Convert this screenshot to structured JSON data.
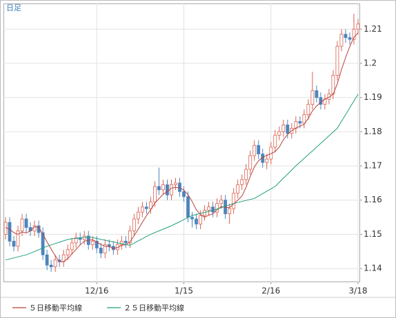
{
  "chart_data": {
    "type": "candlestick",
    "period_label": "日足",
    "categories": [
      null,
      null,
      null,
      null,
      null,
      null,
      null,
      null,
      null,
      null,
      null,
      null,
      null,
      null,
      null,
      null,
      null,
      null,
      null,
      null,
      null,
      null,
      "12/16",
      null,
      null,
      null,
      null,
      null,
      null,
      null,
      null,
      null,
      null,
      null,
      null,
      null,
      null,
      null,
      null,
      null,
      null,
      null,
      null,
      "1/15",
      null,
      null,
      null,
      null,
      null,
      null,
      null,
      null,
      null,
      null,
      null,
      null,
      null,
      null,
      null,
      null,
      null,
      null,
      null,
      null,
      "2/16",
      null,
      null,
      null,
      null,
      null,
      null,
      null,
      null,
      null,
      null,
      null,
      null,
      null,
      null,
      null,
      null,
      null,
      null,
      null,
      null,
      "3/18"
    ],
    "open": [
      1.15,
      1.1535,
      1.148,
      1.1465,
      1.151,
      1.1545,
      1.152,
      1.151,
      1.1525,
      1.1505,
      1.144,
      1.141,
      1.1405,
      1.1425,
      1.142,
      1.144,
      1.1455,
      1.1475,
      1.149,
      1.1485,
      1.1495,
      1.147,
      1.148,
      1.146,
      1.1445,
      1.147,
      1.1465,
      1.1455,
      1.147,
      1.148,
      1.1475,
      1.151,
      1.1545,
      1.1565,
      1.158,
      1.1575,
      1.1595,
      1.164,
      1.163,
      1.1645,
      1.1615,
      1.1645,
      1.165,
      1.1625,
      1.161,
      1.155,
      1.1545,
      1.153,
      1.1555,
      1.157,
      1.158,
      1.1565,
      1.159,
      1.16,
      1.156,
      1.1575,
      1.162,
      1.1645,
      1.166,
      1.169,
      1.173,
      1.176,
      1.1735,
      1.171,
      1.172,
      1.1755,
      1.179,
      1.18,
      1.182,
      1.1795,
      1.181,
      1.183,
      1.1825,
      1.185,
      1.188,
      1.192,
      1.19,
      1.188,
      1.1895,
      1.191,
      1.1965,
      1.205,
      1.2085,
      1.2075,
      1.207,
      1.21
    ],
    "high": [
      1.155,
      1.155,
      1.1495,
      1.1525,
      1.156,
      1.156,
      1.1535,
      1.154,
      1.154,
      1.152,
      1.1455,
      1.1425,
      1.144,
      1.144,
      1.1455,
      1.147,
      1.149,
      1.1505,
      1.1505,
      1.151,
      1.151,
      1.1495,
      1.1495,
      1.1475,
      1.1485,
      1.1485,
      1.148,
      1.1485,
      1.1495,
      1.1495,
      1.1525,
      1.156,
      1.158,
      1.1595,
      1.1595,
      1.161,
      1.1655,
      1.1695,
      1.166,
      1.166,
      1.166,
      1.1665,
      1.1665,
      1.164,
      1.1625,
      1.1565,
      1.156,
      1.157,
      1.1585,
      1.1595,
      1.1595,
      1.1605,
      1.1615,
      1.1615,
      1.159,
      1.1635,
      1.166,
      1.1675,
      1.1705,
      1.1745,
      1.1775,
      1.1775,
      1.175,
      1.1735,
      1.177,
      1.1805,
      1.1815,
      1.1835,
      1.1835,
      1.1825,
      1.1845,
      1.1845,
      1.1865,
      1.1895,
      1.1975,
      1.1935,
      1.1915,
      1.191,
      1.1925,
      1.198,
      1.2065,
      1.21,
      1.21,
      1.209,
      1.2145,
      1.213
    ],
    "low": [
      1.1485,
      1.1465,
      1.145,
      1.145,
      1.1495,
      1.1505,
      1.1495,
      1.1495,
      1.149,
      1.1425,
      1.1395,
      1.139,
      1.139,
      1.1405,
      1.1405,
      1.1425,
      1.144,
      1.146,
      1.147,
      1.147,
      1.1455,
      1.1455,
      1.1445,
      1.143,
      1.143,
      1.145,
      1.144,
      1.144,
      1.1455,
      1.146,
      1.146,
      1.1495,
      1.153,
      1.155,
      1.156,
      1.156,
      1.158,
      1.1615,
      1.1615,
      1.16,
      1.16,
      1.163,
      1.161,
      1.1595,
      1.1535,
      1.152,
      1.1515,
      1.1515,
      1.154,
      1.1555,
      1.155,
      1.155,
      1.1575,
      1.1545,
      1.153,
      1.156,
      1.1605,
      1.163,
      1.1645,
      1.1675,
      1.1715,
      1.172,
      1.1695,
      1.169,
      1.1705,
      1.174,
      1.1775,
      1.1785,
      1.178,
      1.178,
      1.1795,
      1.181,
      1.181,
      1.1835,
      1.1865,
      1.1885,
      1.1865,
      1.1865,
      1.188,
      1.1895,
      1.195,
      1.2035,
      1.206,
      1.2055,
      1.2055,
      1.2085
    ],
    "close": [
      1.1535,
      1.148,
      1.1465,
      1.151,
      1.1545,
      1.152,
      1.151,
      1.1525,
      1.1505,
      1.144,
      1.141,
      1.1405,
      1.1425,
      1.142,
      1.144,
      1.1455,
      1.1475,
      1.149,
      1.1485,
      1.1495,
      1.147,
      1.148,
      1.146,
      1.1445,
      1.147,
      1.1465,
      1.1455,
      1.147,
      1.148,
      1.1475,
      1.151,
      1.1545,
      1.1565,
      1.158,
      1.1575,
      1.1595,
      1.164,
      1.163,
      1.1645,
      1.1615,
      1.1645,
      1.165,
      1.1625,
      1.161,
      1.155,
      1.1545,
      1.153,
      1.1555,
      1.157,
      1.158,
      1.1565,
      1.159,
      1.16,
      1.156,
      1.1575,
      1.162,
      1.1645,
      1.166,
      1.169,
      1.173,
      1.176,
      1.1735,
      1.171,
      1.172,
      1.1755,
      1.179,
      1.18,
      1.182,
      1.1795,
      1.181,
      1.183,
      1.1825,
      1.185,
      1.188,
      1.192,
      1.19,
      1.188,
      1.1895,
      1.191,
      1.1965,
      1.205,
      1.2085,
      1.2075,
      1.207,
      1.21,
      1.2115
    ],
    "up_color": "#d9604f",
    "down_color": "#4d85bd",
    "series": [
      {
        "name": "５日移動平均線",
        "color": "#b8403a",
        "values": [
          1.152,
          1.1515,
          1.1505,
          1.15,
          1.1507,
          1.1504,
          1.151,
          1.1522,
          1.1521,
          1.15,
          1.1478,
          1.1457,
          1.1437,
          1.142,
          1.142,
          1.1429,
          1.1443,
          1.1456,
          1.1469,
          1.148,
          1.1483,
          1.1484,
          1.1478,
          1.147,
          1.1465,
          1.1464,
          1.1459,
          1.1461,
          1.1468,
          1.1469,
          1.1478,
          1.1496,
          1.1515,
          1.1535,
          1.1555,
          1.1572,
          1.1591,
          1.1604,
          1.1617,
          1.1625,
          1.1635,
          1.1637,
          1.1636,
          1.1629,
          1.1616,
          1.1596,
          1.1572,
          1.1558,
          1.155,
          1.1556,
          1.156,
          1.1572,
          1.1581,
          1.1579,
          1.1578,
          1.1589,
          1.16,
          1.1612,
          1.1638,
          1.1669,
          1.1697,
          1.1715,
          1.1725,
          1.1731,
          1.1736,
          1.1742,
          1.1755,
          1.1777,
          1.1792,
          1.1803,
          1.1811,
          1.1816,
          1.1822,
          1.1839,
          1.1861,
          1.1875,
          1.1886,
          1.1895,
          1.1901,
          1.191,
          1.194,
          1.1981,
          1.2017,
          1.2049,
          1.2076,
          1.2089
        ]
      },
      {
        "name": "２５日移動平均線",
        "color": "#20a07c",
        "values": [
          1.1425,
          1.1428,
          1.1431,
          1.1434,
          1.1437,
          1.144,
          1.1445,
          1.145,
          1.1455,
          1.146,
          1.1465,
          1.1469,
          1.1473,
          1.1477,
          1.1481,
          1.1485,
          1.1487,
          1.1488,
          1.149,
          1.1491,
          1.1493,
          1.149,
          1.1488,
          1.1485,
          1.1483,
          1.148,
          1.1478,
          1.1475,
          1.1473,
          1.147,
          1.1468,
          1.1474,
          1.1481,
          1.1487,
          1.1494,
          1.15,
          1.1505,
          1.151,
          1.1515,
          1.152,
          1.1525,
          1.1531,
          1.1537,
          1.1543,
          1.1549,
          1.1555,
          1.1558,
          1.1561,
          1.1564,
          1.1567,
          1.157,
          1.1574,
          1.1578,
          1.1582,
          1.1586,
          1.159,
          1.1593,
          1.1596,
          1.1599,
          1.1602,
          1.1605,
          1.1612,
          1.1619,
          1.1626,
          1.1633,
          1.164,
          1.1652,
          1.1664,
          1.1676,
          1.1688,
          1.17,
          1.1711,
          1.1722,
          1.1733,
          1.1744,
          1.1755,
          1.1766,
          1.1777,
          1.1788,
          1.1799,
          1.181,
          1.183,
          1.185,
          1.187,
          1.189,
          1.191
        ]
      }
    ],
    "ylim": [
      1.136,
      1.2175
    ],
    "yticks": [
      1.14,
      1.15,
      1.16,
      1.17,
      1.18,
      1.19,
      1.2,
      1.21
    ],
    "grid": true
  }
}
